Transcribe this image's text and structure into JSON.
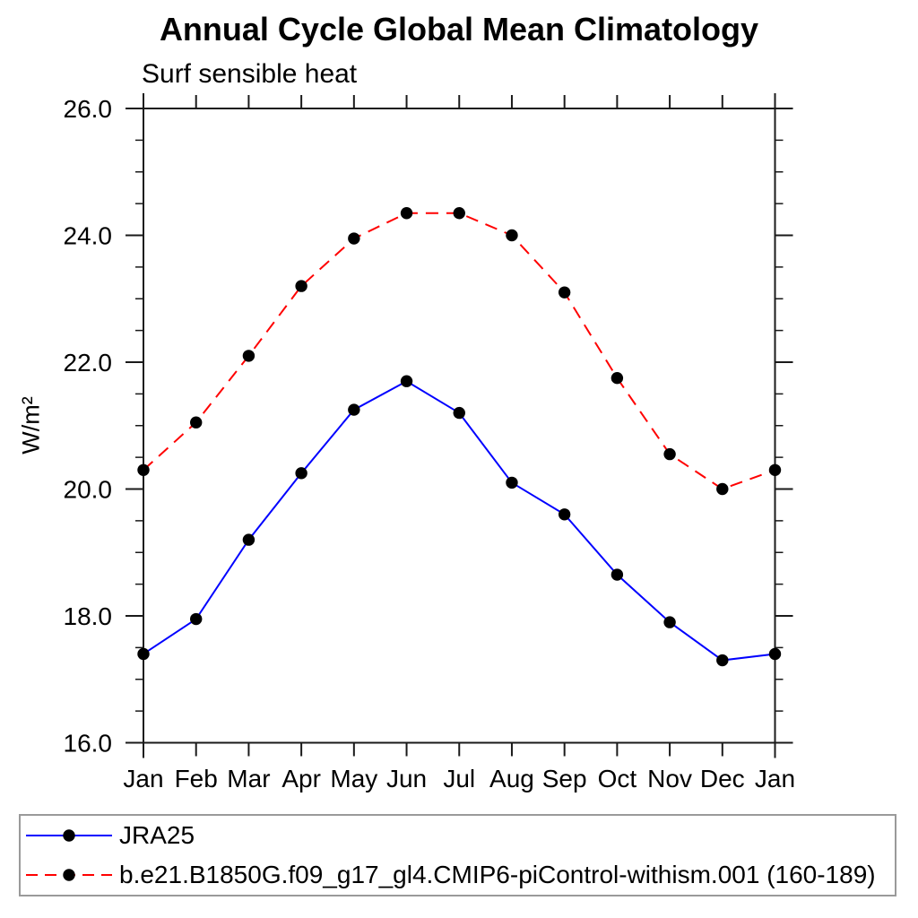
{
  "title": "Annual Cycle Global Mean Climatology",
  "subtitle": "Surf sensible heat",
  "y_axis_title": "W/m²",
  "colors": {
    "series1_line": "#0000ff",
    "series2_line": "#ff0000",
    "marker": "#000000",
    "axis": "#1a1a1a",
    "text": "#000000",
    "legend_border": "#9a9a9a",
    "background": "#ffffff"
  },
  "chart_data": {
    "type": "line",
    "title": "Annual Cycle Global Mean Climatology",
    "subtitle": "Surf sensible heat",
    "xlabel": "",
    "ylabel": "W/m²",
    "categories": [
      "Jan",
      "Feb",
      "Mar",
      "Apr",
      "May",
      "Jun",
      "Jul",
      "Aug",
      "Sep",
      "Oct",
      "Nov",
      "Dec",
      "Jan"
    ],
    "ylim": [
      16.0,
      26.0
    ],
    "ytick_major": [
      16.0,
      18.0,
      20.0,
      22.0,
      24.0,
      26.0
    ],
    "ytick_major_labels": [
      "16.0",
      "18.0",
      "20.0",
      "22.0",
      "24.0",
      "26.0"
    ],
    "ytick_minor_step": 0.5,
    "grid": false,
    "legend_position": "bottom-left-box",
    "series": [
      {
        "name": "JRA25",
        "color": "#0000ff",
        "line_style": "solid",
        "marker": "filled-circle",
        "marker_color": "#000000",
        "values": [
          17.4,
          17.95,
          19.2,
          20.25,
          21.25,
          21.7,
          21.2,
          20.1,
          19.6,
          18.65,
          17.9,
          17.3,
          17.4
        ]
      },
      {
        "name": "b.e21.B1850G.f09_g17_gl4.CMIP6-piControl-withism.001 (160-189)",
        "color": "#ff0000",
        "line_style": "dashed",
        "marker": "filled-circle",
        "marker_color": "#000000",
        "values": [
          20.3,
          21.05,
          22.1,
          23.2,
          23.95,
          24.35,
          24.35,
          24.0,
          23.1,
          21.75,
          20.55,
          20.0,
          20.3
        ]
      }
    ]
  }
}
